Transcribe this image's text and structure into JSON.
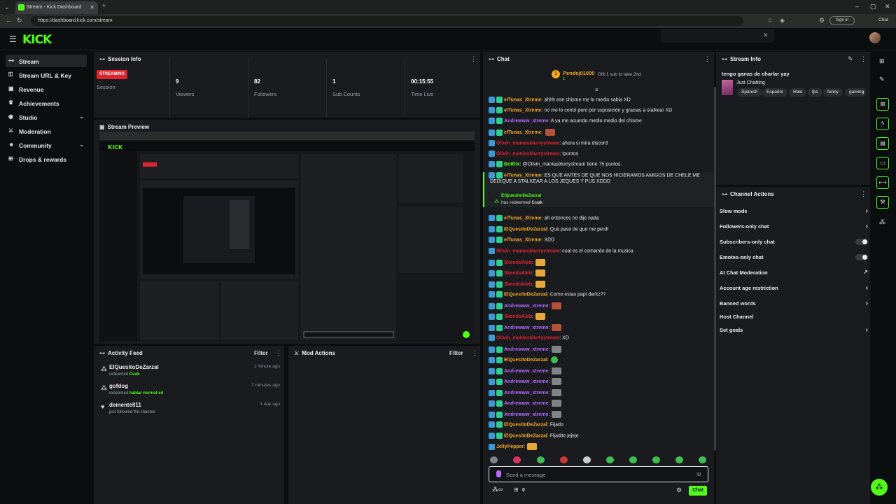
{
  "browser": {
    "tab_title": "Stream - Kick Dashboard",
    "url": "https://dashboard.kick.com/stream",
    "sign_in": "Sign in",
    "chat_label": "Chat"
  },
  "header": {
    "logo": "KICK"
  },
  "sidebar": {
    "items": [
      {
        "label": "Stream",
        "icon": "stream-icon",
        "active": true
      },
      {
        "label": "Stream URL & Key",
        "icon": "key-icon"
      },
      {
        "label": "Revenue",
        "icon": "revenue-icon"
      },
      {
        "label": "Achievements",
        "icon": "trophy-icon"
      },
      {
        "label": "Studio",
        "icon": "studio-icon",
        "expandable": true
      },
      {
        "label": "Moderation",
        "icon": "sword-icon"
      },
      {
        "label": "Community",
        "icon": "users-icon",
        "expandable": true
      },
      {
        "label": "Drops & rewards",
        "icon": "gift-icon"
      }
    ]
  },
  "session": {
    "title": "Session Info",
    "badge": "STREAMING",
    "session_label": "Session",
    "stats": [
      {
        "value": "9",
        "label": "Viewers"
      },
      {
        "value": "82",
        "label": "Followers"
      },
      {
        "value": "1",
        "label": "Sub Counts"
      },
      {
        "value": "00:15:55",
        "label": "Time Live"
      }
    ]
  },
  "preview": {
    "title": "Stream Preview"
  },
  "activity": {
    "title": "Activity Feed",
    "filter": "Filter",
    "items": [
      {
        "name": "ElQuesitoDeZarzal",
        "verb": "redeemed",
        "reward": "Cuak",
        "time": "1 minute ago"
      },
      {
        "name": "gofdog",
        "verb": "redeemed",
        "reward": "habiar normal xd",
        "time": "7 minutes ago"
      },
      {
        "name": "demente911",
        "verb": "just followed the channel",
        "reward": "",
        "time": "1 day ago"
      }
    ]
  },
  "mod_actions": {
    "title": "Mod Actions",
    "filter": "Filter"
  },
  "chat": {
    "title": "Chat",
    "pinned_user": "Pendej01000",
    "pinned_sub": "1",
    "goal_text": "Gift 1 sub to take 2nd",
    "redeem_user": "ElQuesitoDeZarzal",
    "redeem_text": "has redeemed",
    "redeem_reward": "Cuak",
    "input_placeholder": "Send a message",
    "send_button": "Chat",
    "bottom_count": "0",
    "colors": {
      "green": "#53fc18",
      "purple": "#b56aff",
      "orange": "#f5a623",
      "cyan": "#3ab8e8"
    },
    "messages": [
      {
        "user": "elTunas_Xtreme",
        "text": ": ahhh ese chisme me lo medio sabia XD",
        "color": "#f5a623",
        "badges": 2
      },
      {
        "user": "elTunas_Xtreme",
        "text": ": no me lo contó pero por suposición y gracias a stalkear XD",
        "color": "#f5a623",
        "badges": 2
      },
      {
        "user": "Andrewww_xtreme",
        "text": ": A ya me acuerdo medio medio del chisme",
        "color": "#b56aff",
        "badges": 2
      },
      {
        "user": "elTunas_Xtreme",
        "text": ":",
        "color": "#f5a623",
        "badges": 2,
        "emote": "red"
      },
      {
        "user": "Olivin_maniasblurrystream",
        "text": ": ahora si mira discord",
        "color": "#e0242f",
        "badges": 1
      },
      {
        "user": "Olivin_maniasblurrystream",
        "text": ": !puntos",
        "color": "#e0242f",
        "badges": 1
      },
      {
        "user": "BotRix",
        "text": ": @Olivin_maniasblurrystream tiene 75 puntos.",
        "color": "#53fc18",
        "badges": 2
      },
      {
        "user": "elTunas_Xtreme",
        "text": ": ES QUE ANTES DE QUE NOS HICIERAMOS AMIGOS DE CHELE ME",
        "color": "#f5a623",
        "badges": 2
      },
      {
        "user": "",
        "text": "DEDIQUE A STALKEAR A LOS JEQUES Y PUS XDDD",
        "color": "#e8e8e8",
        "badges": 0
      },
      {
        "user": "elTunas_Xtreme",
        "text": ": ah entonces no dije nada",
        "color": "#f5a623",
        "badges": 2
      },
      {
        "user": "ElQuesitoDeZarzal",
        "text": ": Que paso de que me perdí",
        "color": "#f5a623",
        "badges": 2
      },
      {
        "user": "elTunas_Xtreme",
        "text": ": XDD",
        "color": "#f5a623",
        "badges": 2
      },
      {
        "user": "Olivin_maniasblurrystream",
        "text": ": cual es el comando de la musica",
        "color": "#e0242f",
        "badges": 1
      },
      {
        "user": "SkeedoAleb",
        "text": ":",
        "color": "#e0242f",
        "badges": 2,
        "emote": "yellow"
      },
      {
        "user": "SkeedoAleb",
        "text": ":",
        "color": "#e0242f",
        "badges": 2,
        "emote": "yellow"
      },
      {
        "user": "SkeedoAleb",
        "text": ":",
        "color": "#e0242f",
        "badges": 2,
        "emote": "yellow"
      },
      {
        "user": "ElQuesitoDeZarzal",
        "text": ": Como estas papi darkz??",
        "color": "#f5a623",
        "badges": 2
      },
      {
        "user": "Andrewww_xtreme",
        "text": ":",
        "color": "#b56aff",
        "badges": 2,
        "emote": "red"
      },
      {
        "user": "SkeedoAleb",
        "text": ":",
        "color": "#e0242f",
        "badges": 2,
        "emote": "yellow"
      },
      {
        "user": "Andrewww_xtreme",
        "text": ":",
        "color": "#b56aff",
        "badges": 2,
        "emote": "red"
      },
      {
        "user": "Olivin_maniasblurrystream",
        "text": ": XD",
        "color": "#e0242f",
        "badges": 1
      },
      {
        "user": "Andrewww_xtreme",
        "text": ":",
        "color": "#b56aff",
        "badges": 2,
        "emote": "gray"
      },
      {
        "user": "ElQuesitoDeZarzal",
        "text": ":",
        "color": "#f5a623",
        "badges": 2,
        "emote": "green"
      },
      {
        "user": "Andrewww_xtreme",
        "text": ":",
        "color": "#b56aff",
        "badges": 2,
        "emote": "gray"
      },
      {
        "user": "Andrewww_xtreme",
        "text": ":",
        "color": "#b56aff",
        "badges": 2,
        "emote": "gray"
      },
      {
        "user": "Andrewww_xtreme",
        "text": ":",
        "color": "#b56aff",
        "badges": 2,
        "emote": "gray"
      },
      {
        "user": "Andrewww_xtreme",
        "text": ":",
        "color": "#b56aff",
        "badges": 2,
        "emote": "gray"
      },
      {
        "user": "Andrewww_xtreme",
        "text": ":",
        "color": "#b56aff",
        "badges": 2,
        "emote": "gray"
      },
      {
        "user": "ElQuesitoDeZarzal",
        "text": ": Fijado",
        "color": "#f5a623",
        "badges": 2
      },
      {
        "user": "ElQuesitoDeZarzal",
        "text": ": Fijadito jejeje",
        "color": "#f5a623",
        "badges": 2
      },
      {
        "user": "JellyPepper",
        "text": ":",
        "color": "#f5a623",
        "badges": 1,
        "emote": "yellow"
      }
    ]
  },
  "stream_info": {
    "title": "Stream Info",
    "stream_title": "tengo ganas de charlar yay",
    "category": "Just Chatting",
    "tags": [
      "Spanish",
      "Español",
      "Halo",
      "fps",
      "funny",
      "gaming"
    ]
  },
  "channel_actions": {
    "title": "Channel Actions",
    "items": [
      {
        "label": "Slow mode",
        "control": "arrow"
      },
      {
        "label": "Followers-only chat",
        "control": "arrow"
      },
      {
        "label": "Subscribers-only chat",
        "control": "toggle"
      },
      {
        "label": "Emotes-only chat",
        "control": "toggle"
      },
      {
        "label": "AI Chat Moderation",
        "control": "external"
      },
      {
        "label": "Account age restriction",
        "control": "arrow"
      },
      {
        "label": "Banned words",
        "control": "arrow"
      },
      {
        "label": "Host Channel",
        "control": "none"
      },
      {
        "label": "Set goals",
        "control": "arrow"
      }
    ]
  }
}
